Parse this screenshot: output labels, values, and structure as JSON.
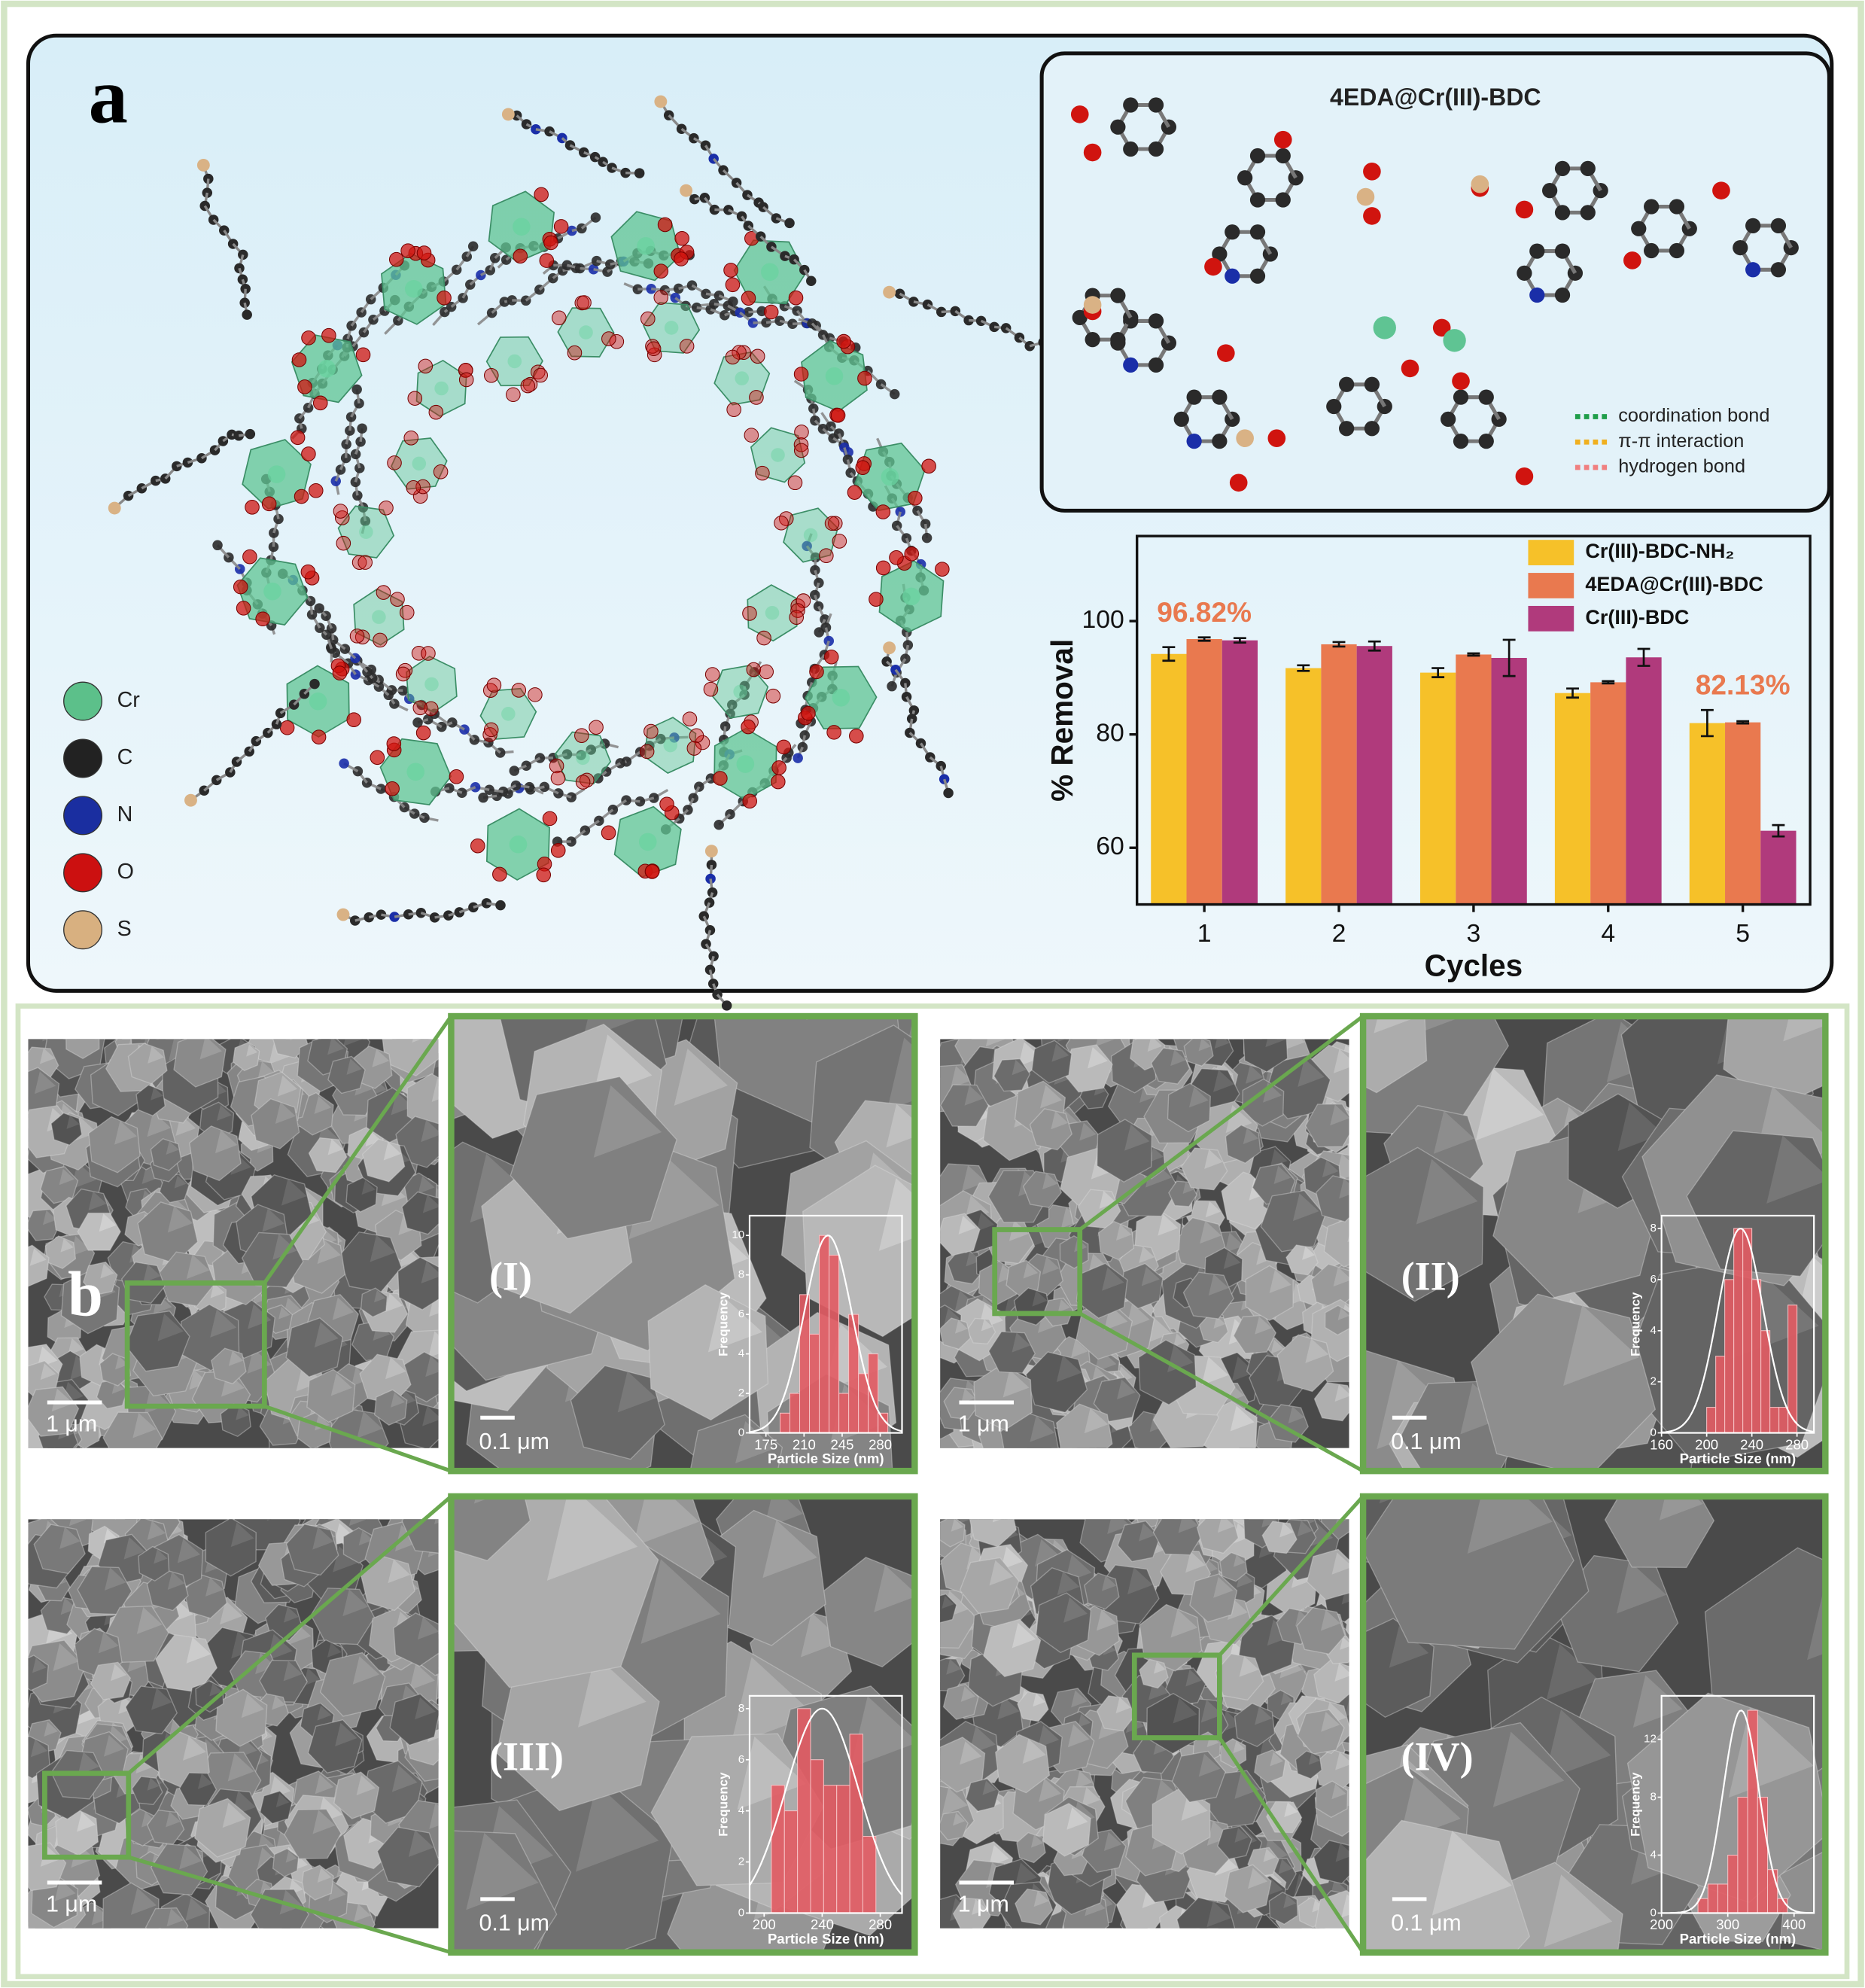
{
  "panel_a": {
    "label": "a",
    "atom_legend": [
      "Cr",
      "C",
      "N",
      "O",
      "S"
    ],
    "inset": {
      "title": "4EDA@Cr(III)-BDC",
      "interactions": [
        "coordination bond",
        "π-π interaction",
        "hydrogen bond"
      ]
    }
  },
  "panel_b": {
    "label": "b",
    "panels": [
      {
        "label": "(I)",
        "overview_scale": "1 μm",
        "zoom_scale": "0.1 μm"
      },
      {
        "label": "(II)",
        "overview_scale": "1 μm",
        "zoom_scale": "0.1 μm"
      },
      {
        "label": "(III)",
        "overview_scale": "1 μm",
        "zoom_scale": "0.1 μm"
      },
      {
        "label": "(IV)",
        "overview_scale": "1 μm",
        "zoom_scale": "0.1 μm"
      }
    ]
  },
  "chart_data": [
    {
      "type": "bar",
      "x_label": "Cycles",
      "y_label": "% Removal",
      "categories": [
        "1",
        "2",
        "3",
        "4",
        "5"
      ],
      "series": [
        {
          "name": "Cr(III)-BDC-NH₂",
          "color": "#f6c129",
          "values": [
            94.2,
            91.7,
            90.9,
            87.3,
            82.0
          ],
          "errors": [
            1.2,
            0.5,
            0.8,
            0.8,
            2.3
          ]
        },
        {
          "name": "4EDA@Cr(III)-BDC",
          "color": "#e9794f",
          "values": [
            96.82,
            95.9,
            94.1,
            89.2,
            82.13
          ],
          "errors": [
            0.3,
            0.4,
            0.2,
            0.2,
            0.2
          ],
          "value_labels": [
            "96.82%",
            null,
            null,
            null,
            "82.13%"
          ]
        },
        {
          "name": "Cr(III)-BDC",
          "color": "#b03a7c",
          "values": [
            96.6,
            95.6,
            93.5,
            93.6,
            63.0
          ],
          "errors": [
            0.4,
            0.8,
            3.2,
            1.5,
            1.0
          ]
        }
      ],
      "ylim": [
        50,
        115
      ],
      "yticks": [
        60,
        80,
        100
      ],
      "legend": "upper right"
    },
    {
      "type": "histogram",
      "x_label": "Particle Size (nm)",
      "y_label": "Frequency",
      "color": "#e25b63",
      "bins": [
        188,
        197,
        206,
        215,
        224,
        233,
        242,
        251,
        260,
        269,
        278,
        287
      ],
      "counts": [
        1,
        2,
        7,
        5,
        10,
        9,
        2,
        6,
        3,
        4,
        1
      ],
      "xlim": [
        160,
        300
      ],
      "xticks": [
        175,
        210,
        245,
        280
      ],
      "ylim": [
        0,
        11
      ],
      "yticks": [
        0,
        2,
        4,
        6,
        8,
        10
      ],
      "normal_fit": {
        "mean": 232,
        "sd": 22,
        "peak": 10
      }
    },
    {
      "type": "histogram",
      "x_label": "Particle Size (nm)",
      "y_label": "Frequency",
      "color": "#e25b63",
      "bins": [
        200,
        208,
        216,
        224,
        232,
        240,
        248,
        256,
        264,
        272,
        280
      ],
      "counts": [
        1,
        3,
        6,
        8,
        8,
        6,
        4,
        1,
        1,
        5
      ],
      "xlim": [
        160,
        295
      ],
      "xticks": [
        160,
        200,
        240,
        280
      ],
      "ylim": [
        0,
        8.5
      ],
      "yticks": [
        0,
        2,
        4,
        6,
        8
      ],
      "normal_fit": {
        "mean": 230,
        "sd": 20,
        "peak": 8
      }
    },
    {
      "type": "histogram",
      "x_label": "Particle Size (nm)",
      "y_label": "Frequency",
      "color": "#e25b63",
      "bins": [
        205,
        214,
        223,
        232,
        241,
        250,
        259,
        268,
        277
      ],
      "counts": [
        5,
        4,
        8,
        6,
        5,
        5,
        7,
        3
      ],
      "xlim": [
        190,
        295
      ],
      "xticks": [
        200,
        240,
        280
      ],
      "ylim": [
        0,
        8.5
      ],
      "yticks": [
        0,
        2,
        4,
        6,
        8
      ],
      "normal_fit": {
        "mean": 240,
        "sd": 25,
        "peak": 8
      }
    },
    {
      "type": "histogram",
      "x_label": "Particle Size (nm)",
      "y_label": "Frequency",
      "color": "#e25b63",
      "bins": [
        255,
        270,
        285,
        300,
        315,
        330,
        345,
        360,
        375,
        390
      ],
      "counts": [
        1,
        2,
        2,
        4,
        8,
        14,
        8,
        3,
        1
      ],
      "xlim": [
        200,
        430
      ],
      "xticks": [
        200,
        300,
        400
      ],
      "ylim": [
        0,
        15
      ],
      "yticks": [
        0,
        4,
        8,
        12
      ],
      "normal_fit": {
        "mean": 320,
        "sd": 27,
        "peak": 14
      }
    }
  ]
}
